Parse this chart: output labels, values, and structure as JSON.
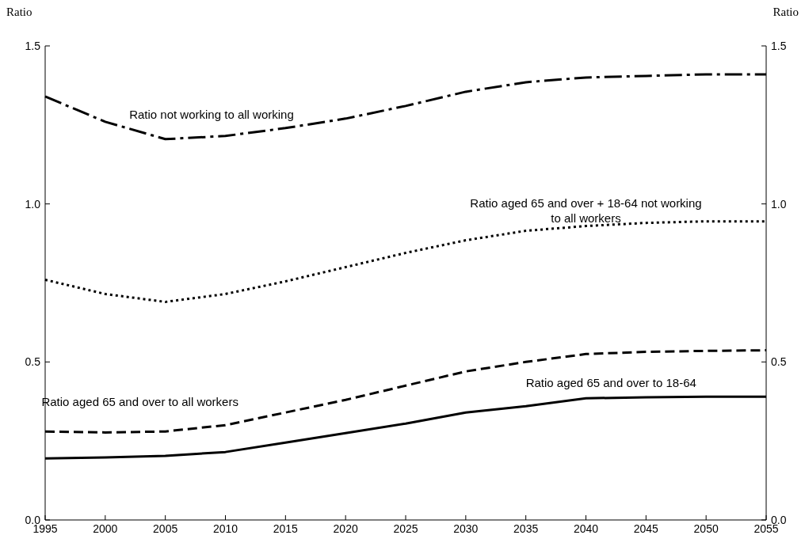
{
  "chart_data": {
    "type": "line",
    "ylabel": "Ratio",
    "y2label": "Ratio",
    "x": [
      1995,
      2000,
      2005,
      2010,
      2015,
      2020,
      2025,
      2030,
      2035,
      2040,
      2045,
      2050,
      2055
    ],
    "xlim": [
      1995,
      2055
    ],
    "xticks": [
      1995,
      2000,
      2005,
      2010,
      2015,
      2020,
      2025,
      2030,
      2035,
      2040,
      2045,
      2050,
      2055
    ],
    "ylim": [
      0,
      1.5
    ],
    "yticks": [
      {
        "value": 0,
        "label": "0.0"
      },
      {
        "value": 0.5,
        "label": "0.5"
      },
      {
        "value": 1,
        "label": "1.0"
      },
      {
        "value": 1.5,
        "label": "1.5"
      }
    ],
    "y2lim": [
      0,
      1.5
    ],
    "y2ticks": [
      {
        "value": 0,
        "label": "0.0"
      },
      {
        "value": 0.5,
        "label": "0.5"
      },
      {
        "value": 1,
        "label": "1.0"
      },
      {
        "value": 1.5,
        "label": "1.5"
      }
    ],
    "grid": false,
    "series": [
      {
        "name": "Ratio not working to all working",
        "color": "#000000",
        "line_style": "dashdot",
        "values": [
          1.34,
          1.26,
          1.205,
          1.215,
          1.24,
          1.27,
          1.31,
          1.355,
          1.385,
          1.4,
          1.405,
          1.41,
          1.41
        ]
      },
      {
        "name": "Ratio aged 65 and over + 18-64 not working to all workers",
        "color": "#000000",
        "line_style": "dotted",
        "values": [
          0.76,
          0.715,
          0.69,
          0.715,
          0.755,
          0.8,
          0.845,
          0.885,
          0.915,
          0.93,
          0.94,
          0.945,
          0.945
        ]
      },
      {
        "name": "Ratio aged 65 and over to all workers",
        "color": "#000000",
        "line_style": "dashed",
        "values": [
          0.28,
          0.277,
          0.28,
          0.3,
          0.34,
          0.38,
          0.425,
          0.47,
          0.5,
          0.525,
          0.532,
          0.535,
          0.537
        ]
      },
      {
        "name": "Ratio aged 65 and over to 18-64",
        "color": "#000000",
        "line_style": "solid",
        "values": [
          0.195,
          0.198,
          0.203,
          0.215,
          0.245,
          0.275,
          0.305,
          0.34,
          0.36,
          0.385,
          0.388,
          0.39,
          0.39
        ]
      }
    ]
  }
}
